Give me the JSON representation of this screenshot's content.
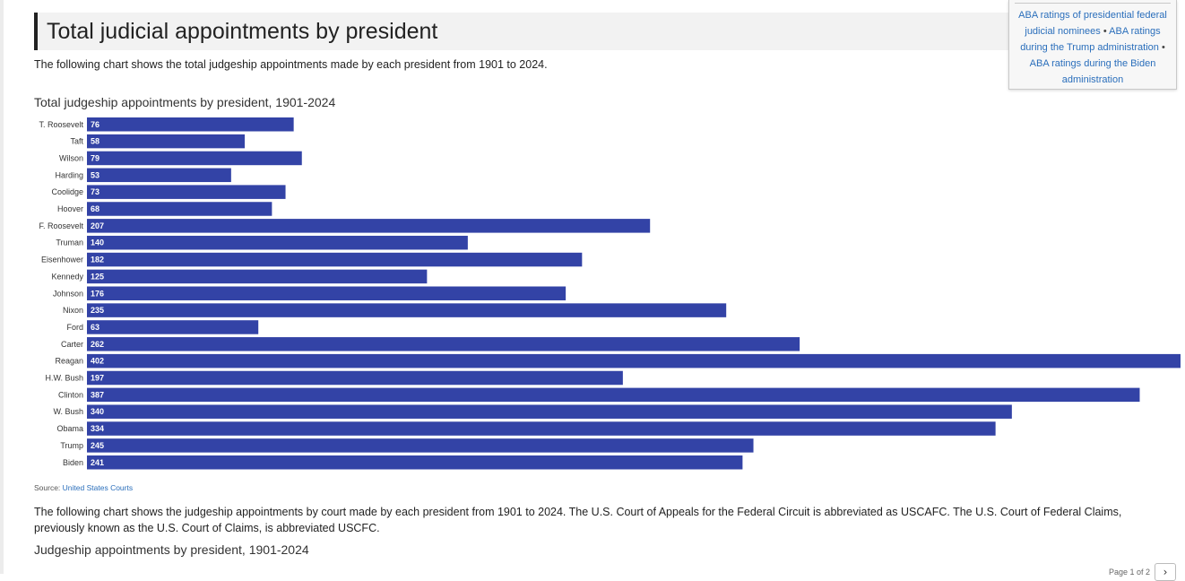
{
  "page": {
    "title": "Total judicial appointments by president",
    "intro": "The following chart shows the total judgeship appointments made by each president from 1901 to 2024.",
    "sidebox": {
      "links": [
        "ABA ratings of presidential federal judicial nominees",
        "ABA ratings during the Trump administration",
        "ABA ratings during the Biden administration"
      ],
      "separator": "•"
    },
    "source_label": "Source:",
    "source_link": "United States Courts",
    "paragraph2": "The following chart shows the judgeship appointments by court made by each president from 1901 to 2024. The U.S. Court of Appeals for the Federal Circuit is abbreviated as USCAFC. The U.S. Court of Federal Claims, previously known as the U.S. Court of Claims, is abbreviated USCFC.",
    "chart2_title": "Judgeship appointments by president, 1901-2024",
    "pager_text": "Page 1 of 2",
    "pager_next_icon": "chevron-right-icon"
  },
  "chart_data": {
    "type": "bar",
    "orientation": "horizontal",
    "title": "Total judgeship appointments by president, 1901-2024",
    "xlabel": "",
    "ylabel": "",
    "grid": false,
    "data_labels": true,
    "bar_color": "#3343a6",
    "categories": [
      "T. Roosevelt",
      "Taft",
      "Wilson",
      "Harding",
      "Coolidge",
      "Hoover",
      "F. Roosevelt",
      "Truman",
      "Eisenhower",
      "Kennedy",
      "Johnson",
      "Nixon",
      "Ford",
      "Carter",
      "Reagan",
      "H.W. Bush",
      "Clinton",
      "W. Bush",
      "Obama",
      "Trump",
      "Biden"
    ],
    "values": [
      76,
      58,
      79,
      53,
      73,
      68,
      207,
      140,
      182,
      125,
      176,
      235,
      63,
      262,
      402,
      197,
      387,
      340,
      334,
      245,
      241
    ],
    "xlim": [
      0,
      402
    ]
  }
}
